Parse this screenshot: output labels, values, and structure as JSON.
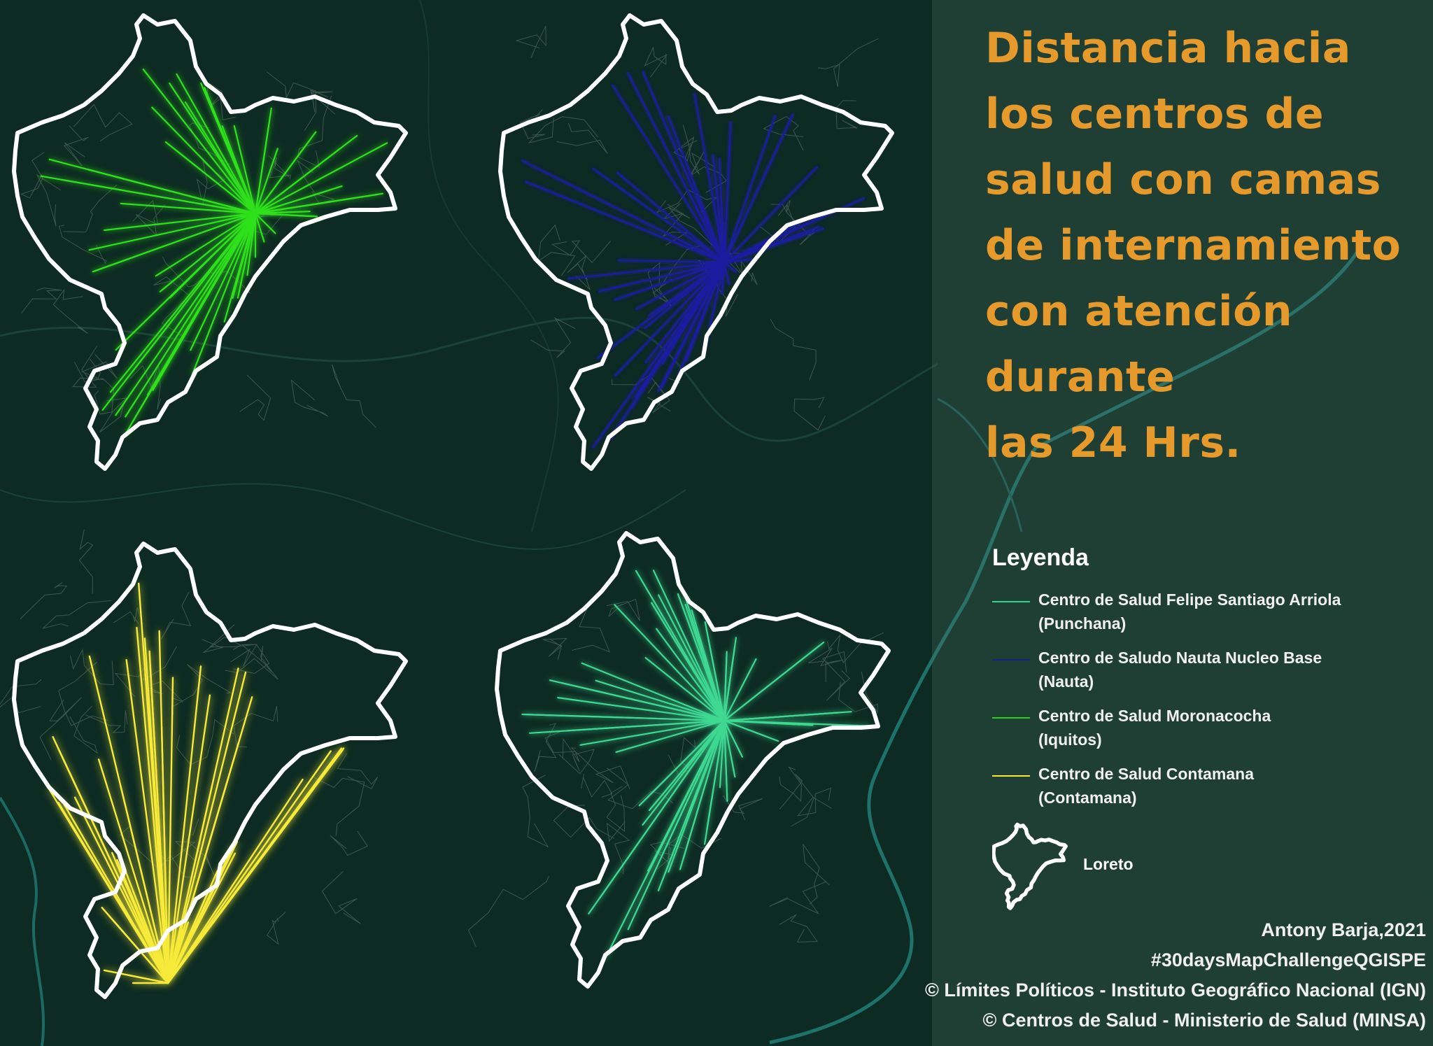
{
  "title_lines": [
    "Distancia hacia",
    "los centros de",
    "salud con camas",
    "de internamiento",
    "con atención",
    "durante",
    "las 24 Hrs."
  ],
  "legend": {
    "title": "Leyenda",
    "items": [
      {
        "label": "Centro de Salud Felipe Santiago Arriola",
        "sublabel": "(Punchana)",
        "color": "#2fd58a"
      },
      {
        "label": "Centro de Saludo Nauta Nucleo Base",
        "sublabel": "(Nauta)",
        "color": "#1a1f8f"
      },
      {
        "label": "Centro de Salud Moronacocha",
        "sublabel": "(Iquitos)",
        "color": "#29d417"
      },
      {
        "label": "Centro de Salud Contamana",
        "sublabel": "(Contamana)",
        "color": "#f6e733"
      }
    ],
    "region_label": "Loreto"
  },
  "credits": [
    "Antony Barja,2021",
    "#30daysMapChallengeQGISPE",
    "© Límites Políticos - Instituto Geográfico Nacional (IGN)",
    "© Centros de Salud - Ministerio de Salud (MINSA)"
  ],
  "maps": [
    {
      "name": "map-moronacocha",
      "color": "#2ee11a",
      "glow": "#1fb80f"
    },
    {
      "name": "map-nauta",
      "color": "#1a1fa0",
      "glow": "#6d6ad8"
    },
    {
      "name": "map-contamana",
      "color": "#f7ea38",
      "glow": "#d6c21a"
    },
    {
      "name": "map-punchana",
      "color": "#3ed993",
      "glow": "#22a86a"
    }
  ]
}
